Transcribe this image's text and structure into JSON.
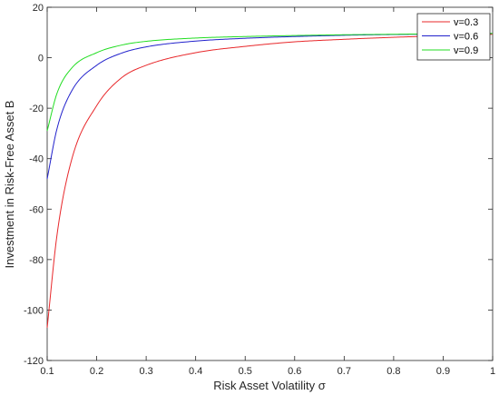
{
  "chart_data": {
    "type": "line",
    "xlabel": "Risk Asset Volatility σ",
    "ylabel": "Investment in Risk-Free Asset B",
    "xlim": [
      0.1,
      1
    ],
    "ylim": [
      -120,
      20
    ],
    "xticks": [
      0.1,
      0.2,
      0.3,
      0.4,
      0.5,
      0.6,
      0.7,
      0.8,
      0.9,
      1
    ],
    "yticks": [
      -120,
      -100,
      -80,
      -60,
      -40,
      -20,
      0,
      20
    ],
    "xtick_labels": [
      "0.1",
      "0.2",
      "0.3",
      "0.4",
      "0.5",
      "0.6",
      "0.7",
      "0.8",
      "0.9",
      "1"
    ],
    "ytick_labels": [
      "-120",
      "-100",
      "-80",
      "-60",
      "-40",
      "-20",
      "0",
      "20"
    ],
    "grid": false,
    "legend_position": "top-right",
    "x": [
      0.1,
      0.12,
      0.15,
      0.2,
      0.25,
      0.3,
      0.4,
      0.5,
      0.6,
      0.7,
      0.8,
      0.9,
      1.0
    ],
    "series": [
      {
        "name": "v=0.3",
        "color": "#e8282b",
        "values": [
          -107,
          -70,
          -40,
          -19,
          -8,
          -3,
          2,
          4.5,
          6.3,
          7.3,
          8.1,
          8.7,
          9.3
        ]
      },
      {
        "name": "v=0.6",
        "color": "#2222cc",
        "values": [
          -48,
          -28,
          -13,
          -3,
          1.8,
          4.3,
          6.6,
          7.7,
          8.4,
          8.9,
          9.2,
          9.4,
          9.6
        ]
      },
      {
        "name": "v=0.9",
        "color": "#22dd22",
        "values": [
          -29,
          -14,
          -4,
          2,
          5,
          6.5,
          7.8,
          8.4,
          8.8,
          9.1,
          9.3,
          9.5,
          9.6
        ]
      }
    ]
  }
}
